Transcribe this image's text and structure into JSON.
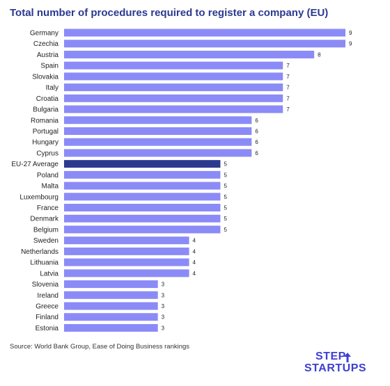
{
  "chart_data": {
    "type": "bar",
    "orientation": "horizontal",
    "title": "Total number of procedures required to register a company (EU)",
    "categories": [
      "Germany",
      "Czechia",
      "Austria",
      "Spain",
      "Slovakia",
      "Italy",
      "Croatia",
      "Bulgaria",
      "Romania",
      "Portugal",
      "Hungary",
      "Cyprus",
      "EU-27 Average",
      "Poland",
      "Malta",
      "Luxembourg",
      "France",
      "Denmark",
      "Belgium",
      "Sweden",
      "Netherlands",
      "Lithuania",
      "Latvia",
      "Slovenia",
      "Ireland",
      "Greece",
      "Finland",
      "Estonia"
    ],
    "values": [
      9,
      9,
      8,
      7,
      7,
      7,
      7,
      7,
      6,
      6,
      6,
      6,
      5,
      5,
      5,
      5,
      5,
      5,
      5,
      4,
      4,
      4,
      4,
      3,
      3,
      3,
      3,
      3
    ],
    "highlight_category": "EU-27 Average",
    "xlim": [
      0,
      9
    ],
    "grid": false,
    "legend": "none",
    "colors": {
      "bar": "#8b8bf7",
      "highlight": "#2b3a8f"
    }
  },
  "source_text": "Source: World Bank Group, Ease of Doing Business rankings",
  "logo": {
    "line1": "STEP",
    "line2": "STARTUPS",
    "color": "#3d3fd0"
  }
}
